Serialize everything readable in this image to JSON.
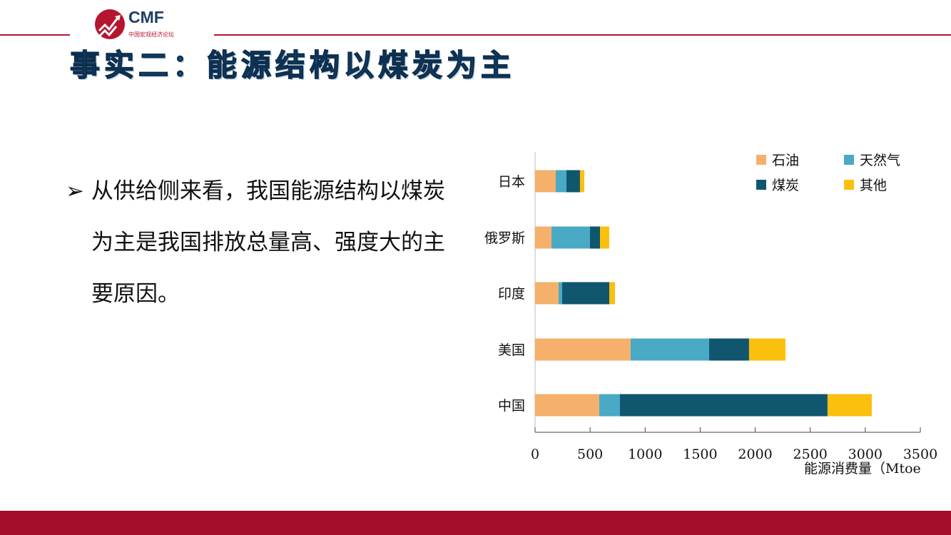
{
  "logo": {
    "brand": "CMF",
    "subtitle": "中国宏观经济论坛",
    "color": "#b5162f"
  },
  "title": "事实二：能源结构以煤炭为主",
  "bullet": {
    "marker": "➢",
    "text": "从供给侧来看，我国能源结构以煤炭为主是我国排放总量高、强度大的主要原因。"
  },
  "chart_data": {
    "type": "bar",
    "orientation": "horizontal",
    "stacked": true,
    "categories": [
      "日本",
      "俄罗斯",
      "印度",
      "美国",
      "中国"
    ],
    "series": [
      {
        "name": "石油",
        "color": "#f5b06b",
        "values": [
          188,
          149,
          214,
          868,
          583
        ]
      },
      {
        "name": "天然气",
        "color": "#4aa9c4",
        "values": [
          97,
          350,
          32,
          713,
          188
        ]
      },
      {
        "name": "煤炭",
        "color": "#10566f",
        "values": [
          123,
          91,
          428,
          363,
          1886
        ]
      },
      {
        "name": "其他",
        "color": "#fbbf0e",
        "values": [
          39,
          84,
          52,
          331,
          402
        ]
      }
    ],
    "xlabel": "能源消费量（Mtoe",
    "xlim": [
      0,
      3500
    ],
    "xticks": [
      "0",
      "500",
      "1000",
      "1500",
      "2000",
      "2500",
      "3000",
      "3500"
    ],
    "legend": "top-right",
    "grid": false
  }
}
